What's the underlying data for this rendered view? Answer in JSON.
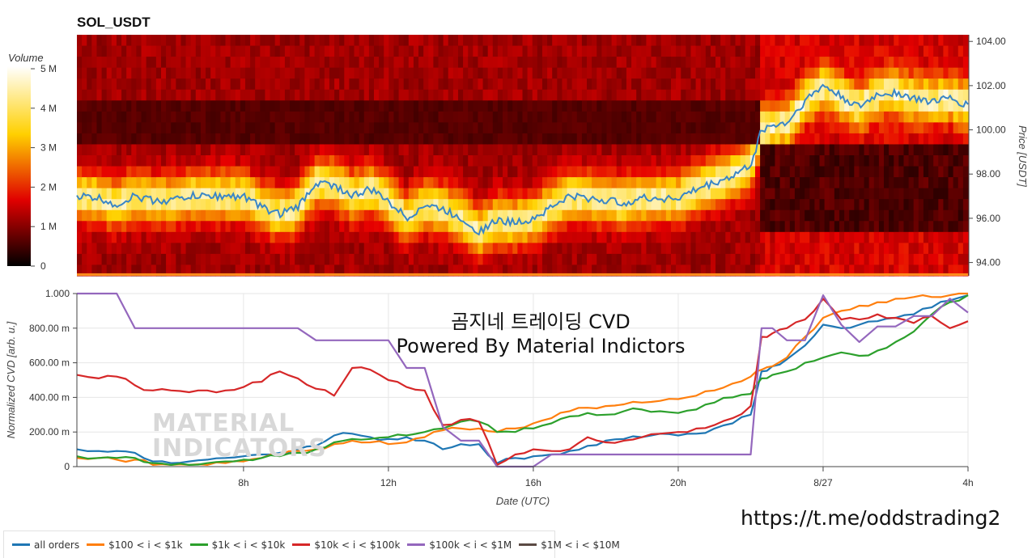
{
  "chart_data": [
    {
      "type": "heatmap",
      "title": "SOL_USDT",
      "colorbar_label": "Volume",
      "colorbar_ticks": [
        "0",
        "1 M",
        "2 M",
        "3 M",
        "4 M",
        "5 M"
      ],
      "colorbar_range": [
        0,
        5000000
      ],
      "ylabel": "Price [USDT]",
      "ylim": [
        93.4,
        104.3
      ],
      "y_ticks": [
        "94.00",
        "96.00",
        "98.00",
        "100.00",
        "102.00",
        "104.00"
      ],
      "colormap": "hot",
      "price_series": {
        "name": "",
        "color": "#1f77b4",
        "x_hours": [
          3.4,
          4.0,
          4.5,
          5.0,
          5.5,
          6.0,
          6.5,
          7.0,
          7.5,
          8.0,
          8.5,
          9.0,
          9.5,
          10.0,
          10.5,
          11.0,
          11.5,
          12.0,
          12.5,
          13.0,
          13.5,
          14.0,
          14.5,
          15.0,
          15.5,
          16.0,
          16.5,
          17.0,
          17.5,
          18.0,
          18.5,
          19.0,
          19.5,
          20.0,
          20.5,
          21.0,
          21.5,
          22.0,
          22.3,
          22.6,
          23.0,
          23.5,
          24.0,
          24.5,
          25.0,
          25.5,
          26.0,
          26.5,
          27.0,
          27.5,
          28.0
        ],
        "price": [
          97.0,
          96.9,
          96.6,
          97.0,
          96.8,
          96.8,
          97.0,
          97.0,
          97.0,
          97.0,
          96.5,
          96.2,
          96.5,
          97.6,
          97.5,
          97.0,
          97.3,
          96.8,
          96.0,
          96.6,
          96.4,
          96.0,
          95.4,
          95.9,
          95.8,
          96.0,
          96.5,
          97.0,
          96.9,
          96.8,
          96.7,
          96.9,
          96.9,
          96.9,
          97.3,
          97.6,
          97.9,
          98.4,
          100.0,
          100.2,
          100.3,
          101.3,
          102.0,
          101.5,
          101.0,
          101.6,
          101.7,
          101.4,
          101.3,
          101.4,
          101.1
        ]
      }
    },
    {
      "type": "line",
      "ylabel": "Normalized CVD [arb. u.]",
      "xlabel": "Date (UTC)",
      "xlim_hours": [
        3.4,
        28.0
      ],
      "ylim": [
        0,
        1
      ],
      "x_ticks": [
        {
          "hour": 8,
          "label": "8h"
        },
        {
          "hour": 12,
          "label": "12h"
        },
        {
          "hour": 16,
          "label": "16h"
        },
        {
          "hour": 20,
          "label": "20h"
        },
        {
          "hour": 24,
          "label": "8/27"
        },
        {
          "hour": 28,
          "label": "4h"
        }
      ],
      "y_ticks": [
        {
          "value": 0,
          "label": "0"
        },
        {
          "value": 0.2,
          "label": "200.00 m"
        },
        {
          "value": 0.4,
          "label": "400.00 m"
        },
        {
          "value": 0.6,
          "label": "600.00 m"
        },
        {
          "value": 0.8,
          "label": "800.00 m"
        },
        {
          "value": 1.0,
          "label": "1.000"
        }
      ],
      "grid": true,
      "legend_position": "bottom-left",
      "x_hours": [
        3.4,
        4.0,
        4.5,
        5.0,
        5.5,
        6.0,
        6.5,
        7.0,
        7.5,
        8.0,
        8.5,
        9.0,
        9.5,
        10.0,
        10.5,
        11.0,
        11.5,
        12.0,
        12.5,
        13.0,
        13.5,
        14.0,
        14.5,
        15.0,
        15.5,
        16.0,
        16.5,
        17.0,
        17.5,
        18.0,
        18.5,
        19.0,
        19.5,
        20.0,
        20.5,
        21.0,
        21.5,
        22.0,
        22.3,
        22.6,
        23.0,
        23.5,
        24.0,
        24.5,
        25.0,
        25.5,
        26.0,
        26.5,
        27.0,
        27.5,
        28.0
      ],
      "series": [
        {
          "name": "all orders",
          "color": "#1f77b4",
          "values": [
            0.1,
            0.09,
            0.09,
            0.08,
            0.03,
            0.02,
            0.03,
            0.04,
            0.05,
            0.06,
            0.07,
            0.08,
            0.1,
            0.12,
            0.18,
            0.19,
            0.17,
            0.16,
            0.17,
            0.15,
            0.1,
            0.13,
            0.13,
            0.02,
            0.05,
            0.06,
            0.07,
            0.09,
            0.12,
            0.15,
            0.16,
            0.17,
            0.19,
            0.18,
            0.19,
            0.22,
            0.25,
            0.3,
            0.55,
            0.58,
            0.62,
            0.7,
            0.82,
            0.8,
            0.82,
            0.84,
            0.86,
            0.88,
            0.92,
            0.96,
            0.99
          ]
        },
        {
          "name": "$100 < i < $1k",
          "color": "#ff7f0e",
          "values": [
            0.05,
            0.05,
            0.04,
            0.04,
            0.01,
            0.01,
            0.01,
            0.01,
            0.02,
            0.03,
            0.05,
            0.07,
            0.09,
            0.1,
            0.13,
            0.15,
            0.14,
            0.13,
            0.14,
            0.17,
            0.21,
            0.22,
            0.22,
            0.2,
            0.22,
            0.25,
            0.28,
            0.32,
            0.34,
            0.35,
            0.36,
            0.37,
            0.38,
            0.39,
            0.41,
            0.44,
            0.48,
            0.52,
            0.56,
            0.58,
            0.63,
            0.75,
            0.86,
            0.9,
            0.93,
            0.95,
            0.97,
            0.98,
            0.98,
            0.99,
            1.0
          ]
        },
        {
          "name": "$1k < i < $10k",
          "color": "#2ca02c",
          "values": [
            0.06,
            0.05,
            0.05,
            0.05,
            0.02,
            0.01,
            0.01,
            0.02,
            0.03,
            0.04,
            0.05,
            0.06,
            0.08,
            0.1,
            0.14,
            0.16,
            0.16,
            0.17,
            0.18,
            0.2,
            0.22,
            0.26,
            0.26,
            0.2,
            0.2,
            0.22,
            0.25,
            0.29,
            0.31,
            0.3,
            0.32,
            0.33,
            0.32,
            0.31,
            0.33,
            0.37,
            0.4,
            0.42,
            0.51,
            0.53,
            0.55,
            0.6,
            0.63,
            0.66,
            0.64,
            0.67,
            0.72,
            0.78,
            0.88,
            0.95,
            0.99
          ]
        },
        {
          "name": "$10k < i < $100k",
          "color": "#d62728",
          "values": [
            0.53,
            0.51,
            0.52,
            0.47,
            0.44,
            0.44,
            0.43,
            0.44,
            0.44,
            0.46,
            0.49,
            0.55,
            0.51,
            0.45,
            0.41,
            0.57,
            0.56,
            0.5,
            0.46,
            0.44,
            0.24,
            0.27,
            0.26,
            0.01,
            0.07,
            0.1,
            0.09,
            0.1,
            0.17,
            0.14,
            0.15,
            0.17,
            0.19,
            0.2,
            0.22,
            0.24,
            0.28,
            0.35,
            0.75,
            0.77,
            0.8,
            0.85,
            0.97,
            0.85,
            0.85,
            0.88,
            0.86,
            0.83,
            0.87,
            0.8,
            0.84
          ]
        },
        {
          "name": "$100k < i < $1M",
          "color": "#9467bd",
          "values": [
            1.0,
            1.0,
            1.0,
            0.8,
            0.8,
            0.8,
            0.8,
            0.8,
            0.8,
            0.8,
            0.8,
            0.8,
            0.8,
            0.73,
            0.73,
            0.73,
            0.73,
            0.73,
            0.57,
            0.57,
            0.23,
            0.15,
            0.15,
            0.0,
            0.0,
            0.0,
            0.07,
            0.07,
            0.07,
            0.07,
            0.07,
            0.07,
            0.07,
            0.07,
            0.07,
            0.07,
            0.07,
            0.07,
            0.8,
            0.8,
            0.73,
            0.73,
            0.99,
            0.82,
            0.72,
            0.81,
            0.81,
            0.87,
            0.87,
            0.97,
            0.89
          ]
        },
        {
          "name": "$1M < i < $10M",
          "color": "#5b4a44",
          "values": []
        }
      ]
    }
  ],
  "overlay": {
    "title_korean": "곰지네 트레이딩 CVD",
    "subtitle": "Powered By Material Indictors",
    "telegram_link": "https://t.me/oddstrading2",
    "logo_text_line1": "MATERIAL",
    "logo_text_line2": "INDICATORS"
  }
}
